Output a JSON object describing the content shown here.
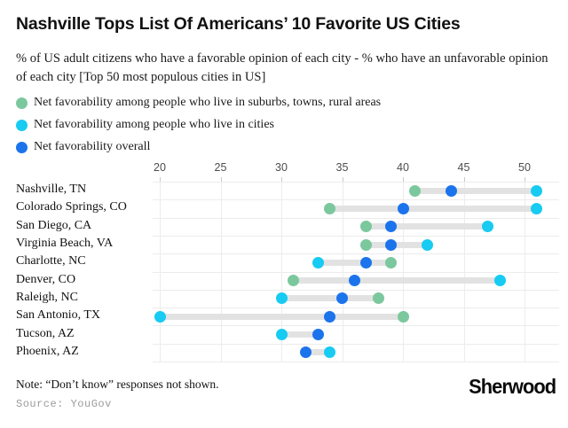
{
  "header": {
    "title": "Nashville Tops List Of Americans’ 10 Favorite US Cities",
    "subtitle": "% of US adult citizens who have a favorable opinion of each city - % who have an unfavorable opinion of each city [Top 50 most populous cities in US]"
  },
  "legend": [
    {
      "key": "suburbs",
      "label": "Net favorability among people who live in suburbs, towns, rural areas"
    },
    {
      "key": "cities",
      "label": "Net favorability among people who live in cities"
    },
    {
      "key": "overall",
      "label": "Net favorability overall"
    }
  ],
  "colors": {
    "suburbs": "#7CC89E",
    "cities": "#17CBF2",
    "overall": "#1B74EB",
    "bar": "#E2E2E2",
    "grid": "#ECECEC",
    "tick": "#C9C9C9"
  },
  "chart_data": {
    "type": "scatter",
    "subtype": "dumbbell-dot-plot",
    "orientation": "horizontal",
    "x_axis": {
      "min": 20,
      "max": 50,
      "ticks": [
        20,
        25,
        30,
        35,
        40,
        45,
        50
      ],
      "position": "top",
      "grid": true
    },
    "series_legend": {
      "suburbs": "Net favorability among people who live in suburbs, towns, rural areas",
      "cities": "Net favorability among people who live in cities",
      "overall": "Net favorability overall"
    },
    "rows": [
      {
        "city": "Nashville, TN",
        "suburbs": 41,
        "cities": 51,
        "overall": 44
      },
      {
        "city": "Colorado Springs, CO",
        "suburbs": 34,
        "cities": 51,
        "overall": 40
      },
      {
        "city": "San Diego, CA",
        "suburbs": 37,
        "cities": 47,
        "overall": 39
      },
      {
        "city": "Virginia Beach, VA",
        "suburbs": 37,
        "cities": 42,
        "overall": 39
      },
      {
        "city": "Charlotte, NC",
        "suburbs": 39,
        "cities": 33,
        "overall": 37
      },
      {
        "city": "Denver, CO",
        "suburbs": 31,
        "cities": 48,
        "overall": 36
      },
      {
        "city": "Raleigh, NC",
        "suburbs": 38,
        "cities": 30,
        "overall": 35
      },
      {
        "city": "San Antonio, TX",
        "suburbs": 40,
        "cities": 20,
        "overall": 34
      },
      {
        "city": "Tucson, AZ",
        "suburbs": null,
        "cities": 30,
        "overall": 33
      },
      {
        "city": "Phoenix, AZ",
        "suburbs": null,
        "cities": 34,
        "overall": 32
      }
    ]
  },
  "footer": {
    "note": "Note: “Don’t know” responses not shown.",
    "source": "Source: YouGov",
    "logo": "Sherwood"
  }
}
